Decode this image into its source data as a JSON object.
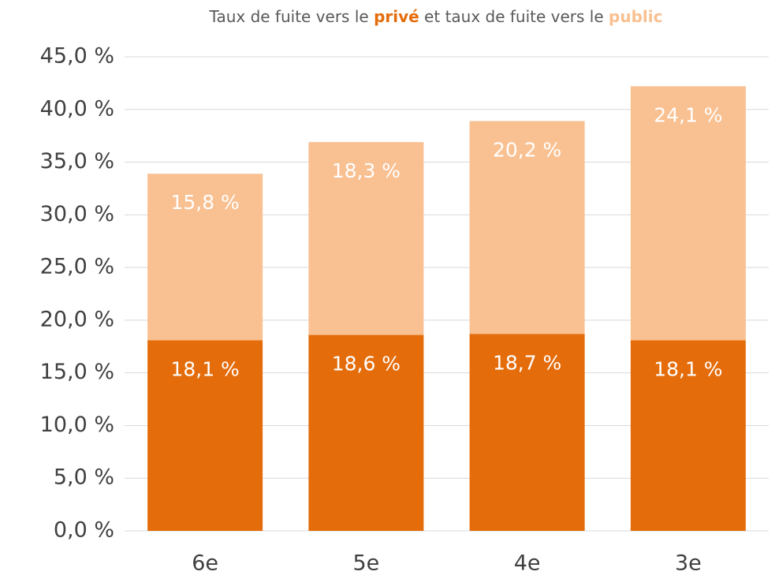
{
  "chart_data": {
    "type": "stacked_bar",
    "title_parts": [
      "Taux de fuite vers le ",
      " et taux de fuite vers le "
    ],
    "categories": [
      "6e",
      "5e",
      "4e",
      "3e"
    ],
    "series": [
      {
        "name": "privé",
        "color": "#e46c0a",
        "values": [
          18.1,
          18.6,
          18.7,
          18.1
        ],
        "value_labels": [
          "18,1 %",
          "18,6 %",
          "18,7 %",
          "18,1 %"
        ]
      },
      {
        "name": "public",
        "color": "#f9c091",
        "values": [
          15.8,
          18.3,
          20.2,
          24.1
        ],
        "value_labels": [
          "15,8 %",
          "18,3 %",
          "20,2 %",
          "24,1 %"
        ]
      }
    ],
    "ylim": [
      0,
      45
    ],
    "yticks": [
      {
        "value": 0,
        "label": "0,0 %"
      },
      {
        "value": 5,
        "label": "5,0 %"
      },
      {
        "value": 10,
        "label": "10,0 %"
      },
      {
        "value": 15,
        "label": "15,0 %"
      },
      {
        "value": 20,
        "label": "20,0 %"
      },
      {
        "value": 25,
        "label": "25,0 %"
      },
      {
        "value": 30,
        "label": "30,0 %"
      },
      {
        "value": 35,
        "label": "35,0 %"
      },
      {
        "value": 40,
        "label": "40,0 %"
      },
      {
        "value": 45,
        "label": "45,0 %"
      }
    ],
    "grid": true
  }
}
